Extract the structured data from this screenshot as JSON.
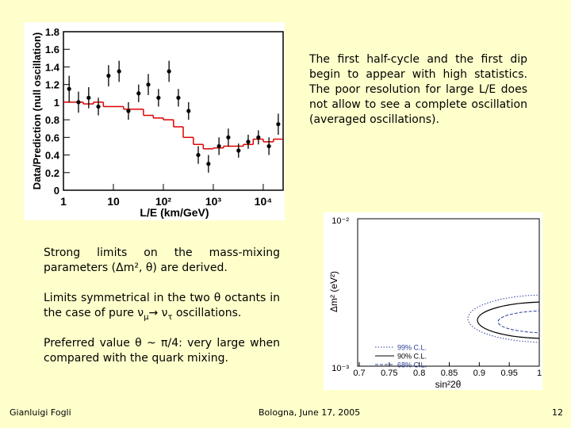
{
  "intro": "The first half-cycle and the first dip begin to appear with high statistics. The poor resolution for large L/E does not allow to see a complete oscillation (averaged oscillations).",
  "paragraphs": [
    [
      "Strong limits on the mass-mixing parameters (Δm², θ) are derived."
    ],
    [
      "Limits symmetrical in the two θ octants in the case of pure ν",
      "μ",
      "→ ν",
      "τ",
      " oscillations."
    ],
    [
      "Preferred value θ ~ π/4: very large when compared with the quark mixing."
    ]
  ],
  "footer": {
    "author": "Gianluigi Fogli",
    "venue": "Bologna, June 17, 2005",
    "page": "12"
  },
  "chart_data": [
    {
      "type": "errorbar",
      "xlabel": "L/E (km/GeV)",
      "ylabel": "Data/Prediction (null oscillation)",
      "xscale": "log",
      "xlim": [
        1,
        25000
      ],
      "xticks": [
        1,
        10,
        {
          "value": 100,
          "label": "10²"
        },
        {
          "value": 1000,
          "label": "10³"
        },
        {
          "value": 10000,
          "label": "10⁴"
        }
      ],
      "ylim": [
        0,
        1.8
      ],
      "yticks": [
        0,
        0.2,
        0.4,
        0.6,
        0.8,
        1,
        1.2,
        1.4,
        1.6,
        1.8
      ],
      "points": {
        "color": "#000000",
        "x": [
          1.3,
          2,
          3.2,
          5,
          8,
          13,
          20,
          32,
          50,
          80,
          130,
          200,
          320,
          500,
          800,
          1300,
          2000,
          3200,
          5000,
          8000,
          13000,
          20000
        ],
        "values": [
          1.15,
          1.0,
          1.05,
          0.95,
          1.3,
          1.35,
          0.9,
          1.1,
          1.2,
          1.05,
          1.35,
          1.05,
          0.9,
          0.4,
          0.3,
          0.5,
          0.6,
          0.45,
          0.55,
          0.6,
          0.5,
          0.75
        ],
        "errors": [
          0.15,
          0.12,
          0.12,
          0.1,
          0.12,
          0.12,
          0.1,
          0.1,
          0.12,
          0.1,
          0.12,
          0.1,
          0.1,
          0.1,
          0.1,
          0.1,
          0.1,
          0.08,
          0.08,
          0.08,
          0.1,
          0.12
        ]
      },
      "prediction": {
        "color": "#dd0000",
        "bins": [
          1,
          1.6,
          2.5,
          4,
          6.3,
          10,
          16,
          25,
          40,
          63,
          100,
          160,
          250,
          400,
          630,
          1000,
          1600,
          2500,
          4000,
          6300,
          10000,
          16000,
          25000
        ],
        "values": [
          1.0,
          1.0,
          0.98,
          1.0,
          0.95,
          0.95,
          0.92,
          0.92,
          0.85,
          0.82,
          0.8,
          0.72,
          0.6,
          0.52,
          0.47,
          0.48,
          0.5,
          0.5,
          0.52,
          0.58,
          0.55,
          0.58
        ]
      }
    },
    {
      "type": "contour",
      "xlabel": "sin²2θ",
      "ylabel": "Δm² (eV²)",
      "xlim": [
        0.7,
        1.0
      ],
      "xticks": [
        0.7,
        0.75,
        0.8,
        0.85,
        0.9,
        0.95,
        1
      ],
      "yscale": "log",
      "ylim": [
        0.001,
        0.01
      ],
      "yticks": [
        {
          "value": 0.001,
          "label": "10⁻³"
        },
        {
          "value": 0.01,
          "label": "10⁻²"
        }
      ],
      "series": [
        {
          "name": "99% C.L.",
          "color": "#2b3f9a"
        },
        {
          "name": "90% C.L.",
          "color": "#000000"
        },
        {
          "name": "68% C.L.",
          "color": "#2b3f9a"
        }
      ]
    }
  ]
}
